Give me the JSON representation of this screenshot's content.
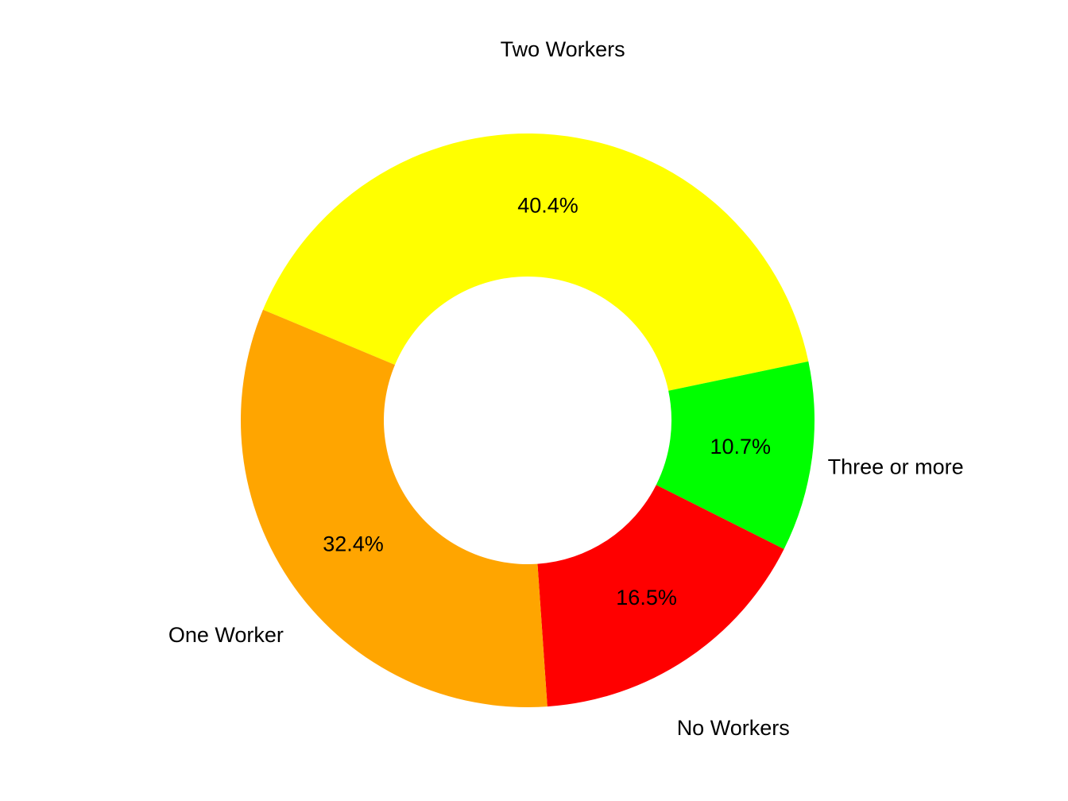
{
  "chart_data": {
    "type": "donut",
    "categories": [
      "Two Workers",
      "Three or more",
      "No Workers",
      "One Worker"
    ],
    "values": [
      40.4,
      10.7,
      16.5,
      32.4
    ],
    "value_labels": [
      "40.4%",
      "10.7%",
      "16.5%",
      "32.4%"
    ],
    "colors": [
      "#ffff00",
      "#00ff00",
      "#ff0000",
      "#ffa500"
    ]
  }
}
